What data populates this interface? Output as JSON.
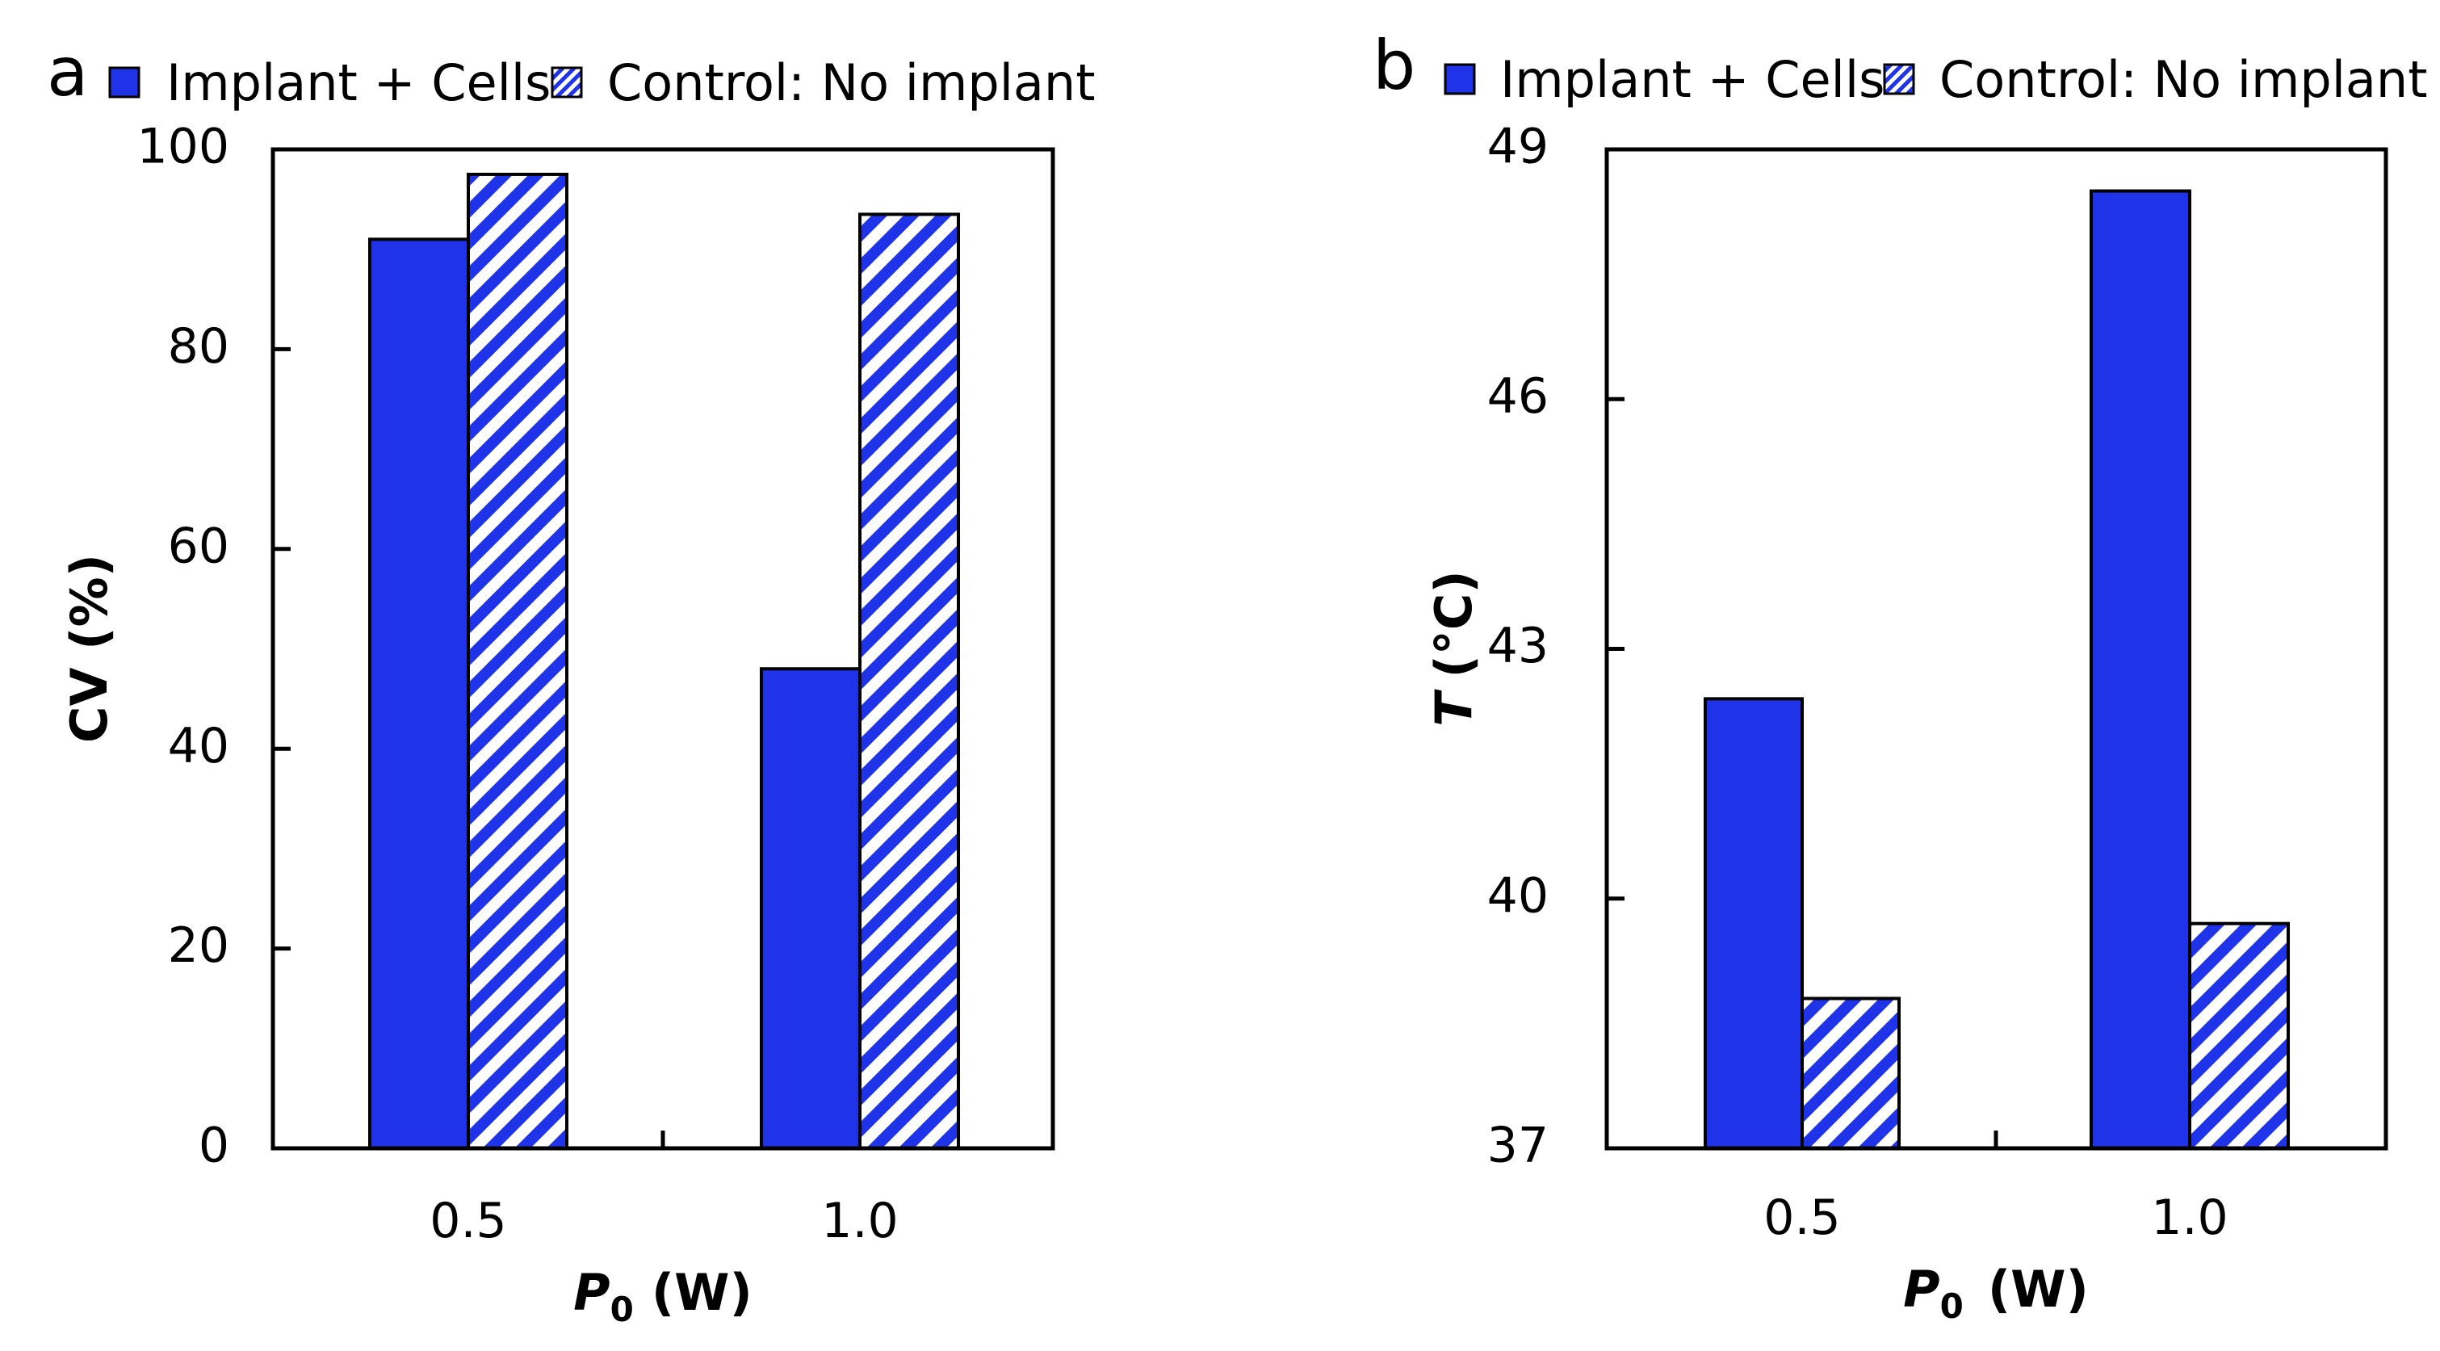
{
  "colors": {
    "solid": "#1f33e8",
    "hatch": "#1f33e8",
    "background": "#ffffff",
    "axis": "#000000"
  },
  "chart_data": [
    {
      "type": "bar",
      "panel": "a",
      "categories": [
        "0.5",
        "1.0"
      ],
      "series": [
        {
          "name": "Implant + Cells",
          "pattern": "solid",
          "values": [
            91,
            48
          ]
        },
        {
          "name": "Control: No implant",
          "pattern": "hatched",
          "values": [
            97.5,
            93.5
          ]
        }
      ],
      "ylabel": "CV (%)",
      "xlabel": {
        "symbol": "P",
        "subscript": "0",
        "unit": "(W)"
      },
      "ylim": [
        0,
        100
      ],
      "yticks": [
        0,
        20,
        40,
        60,
        80,
        100
      ],
      "legend": "top"
    },
    {
      "type": "bar",
      "panel": "b",
      "categories": [
        "0.5",
        "1.0"
      ],
      "series": [
        {
          "name": "Implant + Cells",
          "pattern": "solid",
          "values": [
            42.4,
            48.5
          ]
        },
        {
          "name": "Control: No implant",
          "pattern": "hatched",
          "values": [
            38.8,
            39.7
          ]
        }
      ],
      "ylabel": {
        "symbol": "T",
        "unit": "(°C)"
      },
      "xlabel": {
        "symbol": "P",
        "subscript": "0",
        "unit": "(W)"
      },
      "ylim": [
        37,
        49
      ],
      "yticks": [
        37,
        40,
        43,
        46,
        49
      ],
      "legend": "top"
    }
  ]
}
